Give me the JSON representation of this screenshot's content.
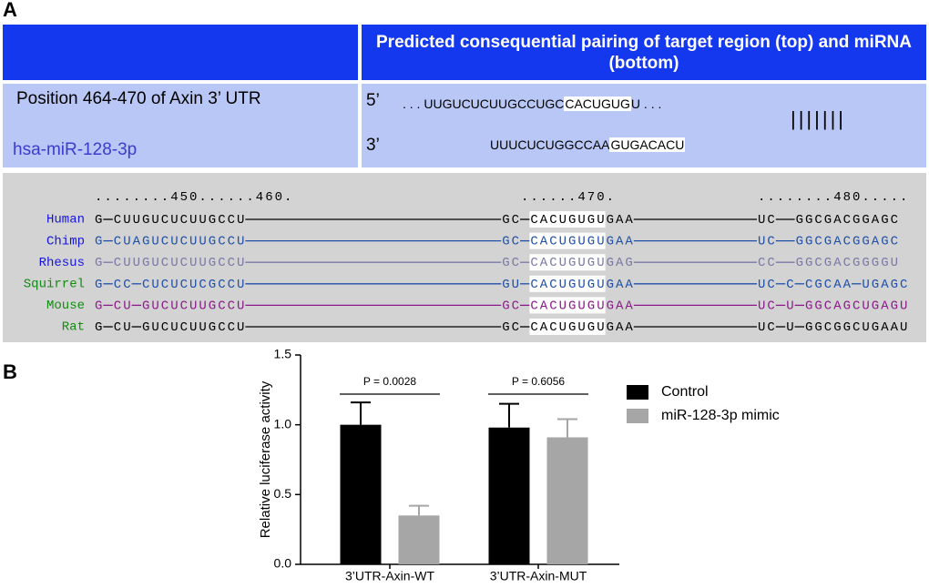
{
  "panel_a": {
    "label": "A",
    "header": "Predicted consequential pairing of target region (top) and miRNA (bottom)",
    "position": "Position 464-470 of Axin 3’ UTR",
    "mirna": "hsa-miR-128-3p",
    "target": {
      "end": "5’",
      "lead": ". . .",
      "sequence": "UUGUCUCUUGCCUGC",
      "seed": "CACUGUG",
      "rest": "U",
      "trail": ". . ."
    },
    "mirna_seq": {
      "end": "3’",
      "sequence": "UUUCUCUGGCCAA",
      "seed": "GUGACACU"
    },
    "pairing": "|||||||"
  },
  "alignment": {
    "ruler": "........450......460.                        ......470.               ........480.....",
    "rows": [
      {
        "species": "Human",
        "name_color": "#1414e0",
        "color": "#000000",
        "sequence": "G-CUUGUCUCUUGCCU---------------------------GC-CACUGUGUGAA-------------UC--GGCGACGGAGC"
      },
      {
        "species": "Chimp",
        "name_color": "#1414e0",
        "color": "#1f4fa8",
        "sequence": "G-CUAGUCUCUUGCCU---------------------------GC-CACUGUGUGAA-------------UC--GGCGACGGAGC"
      },
      {
        "species": "Rhesus",
        "name_color": "#1414e0",
        "color": "#7a78a6",
        "sequence": "G-CUUGUCUCUUGCCU---------------------------GC-CACUGUGUGAG-------------CC--GGCGACGGGGU"
      },
      {
        "species": "Squirrel",
        "name_color": "#138a13",
        "color": "#1f4fa8",
        "sequence": "G-CC-CUCUCUCGCCU---------------------------GU-CACUGUGUGAA-------------UC-C-CGCAA-UGAGC"
      },
      {
        "species": "Mouse",
        "name_color": "#138a13",
        "color": "#8a1a8a",
        "sequence": "G-CU-GUCUCUUGCCU---------------------------GC-CACUGUGUGAA-------------UC-U-GGCAGCUGAGU"
      },
      {
        "species": "Rat",
        "name_color": "#138a13",
        "color": "#000000",
        "sequence": "G-CU-GUCUCUUGCCU---------------------------GC-CACUGUGUGAA-------------UC-U-GGCGGCUGAAU"
      }
    ]
  },
  "chart_data": {
    "type": "bar",
    "label": "B",
    "ylabel": "Relative luciferase activity",
    "categories": [
      "3’UTR-Axin-WT",
      "3’UTR-Axin-MUT"
    ],
    "series": [
      {
        "name": "Control",
        "color": "#000000",
        "values": [
          1.0,
          0.98
        ],
        "errors": [
          0.16,
          0.17
        ]
      },
      {
        "name": "miR-128-3p mimic",
        "color": "#a6a6a6",
        "values": [
          0.35,
          0.91
        ],
        "errors": [
          0.07,
          0.13
        ]
      }
    ],
    "annotations": [
      "P = 0.0028",
      "P = 0.6056"
    ],
    "ylim": [
      0,
      1.5
    ],
    "yticks": [
      {
        "value": 0,
        "label": "0.0"
      },
      {
        "value": 0.5,
        "label": "0.5"
      },
      {
        "value": 1,
        "label": "1.0"
      },
      {
        "value": 1.5,
        "label": "1.5"
      }
    ]
  }
}
